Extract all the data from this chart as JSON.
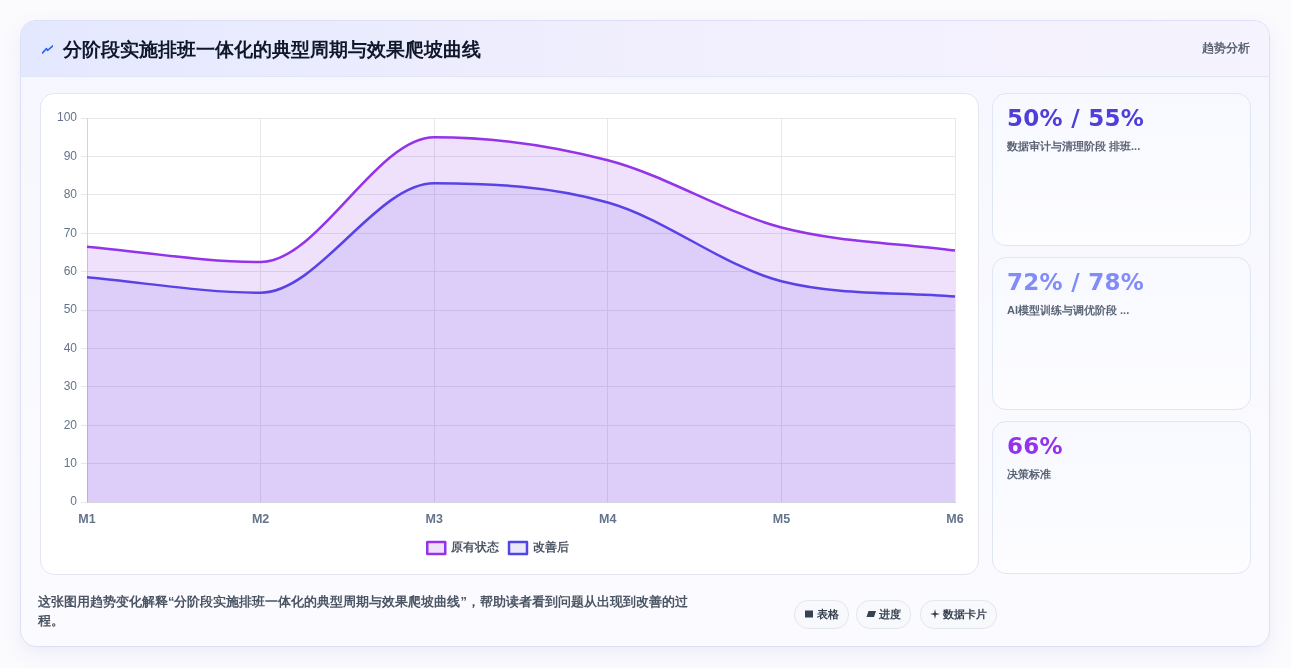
{
  "chart_data": [
    {
      "type": "area",
      "title": "分阶段实施排班一体化的典型周期与效果爬坡曲线",
      "categories": [
        "M1",
        "M2",
        "M3",
        "M4",
        "M5",
        "M6"
      ],
      "series": [
        {
          "name": "原有状态",
          "color": "#9333ea",
          "values": [
            66.5,
            62.5,
            95,
            89,
            71.5,
            65.5
          ]
        },
        {
          "name": "改善后",
          "color": "#4f46e5",
          "values": [
            58.5,
            54.5,
            83,
            78,
            57.5,
            53.5
          ]
        }
      ],
      "ylim": [
        0,
        100
      ],
      "yticks": [
        0,
        10,
        20,
        30,
        40,
        50,
        60,
        70,
        80,
        90,
        100
      ],
      "grid": true,
      "legend": "bottom",
      "marker": "none",
      "annotations": [
        "趋势分析",
        "这张图用趋势变化解释“分阶段实施排班一体化的典型周期与效果爬坡曲线”，帮助读者看到问题从出现到改善的过程。",
        "表格",
        "进度",
        "数据卡片"
      ]
    },
    {
      "type": "other",
      "annotations": [
        "50% / 55%",
        "数据审计与清理阶段 排班...",
        "72% / 78%",
        "AI模型训练与调优阶段 ...",
        "66%",
        "决策标准"
      ]
    }
  ]
}
